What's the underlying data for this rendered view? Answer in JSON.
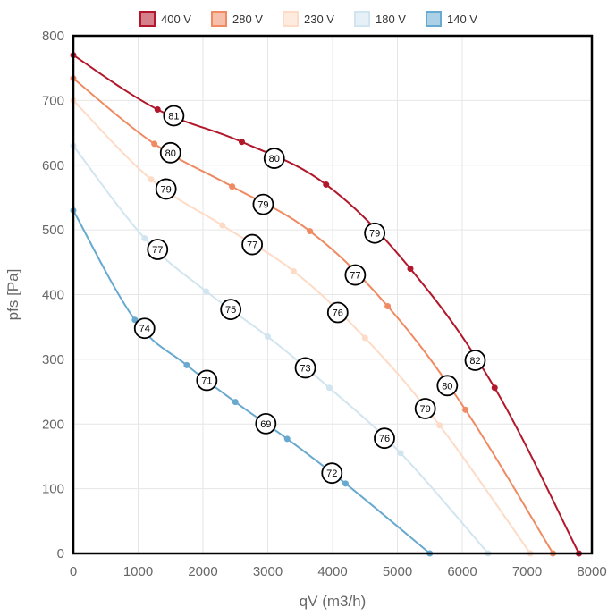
{
  "chart_data": {
    "type": "line",
    "xlabel": "qV (m3/h)",
    "ylabel": "pfs [Pa]",
    "xlim": [
      0,
      8000
    ],
    "ylim": [
      0,
      800
    ],
    "xticks": [
      "0",
      "1000",
      "2000",
      "3000",
      "4000",
      "5000",
      "6000",
      "7000",
      "8000"
    ],
    "yticks": [
      "0",
      "100",
      "200",
      "300",
      "400",
      "500",
      "600",
      "700",
      "800"
    ],
    "grid": true,
    "legend_position": "top",
    "series": [
      {
        "name": "400 V",
        "color": "#b2182b",
        "points": [
          [
            0,
            770
          ],
          [
            1300,
            686
          ],
          [
            2600,
            636
          ],
          [
            3900,
            570
          ],
          [
            5200,
            440
          ],
          [
            6500,
            256
          ],
          [
            7800,
            0
          ]
        ],
        "annotations": [
          [
            1550,
            81
          ],
          [
            3100,
            80
          ],
          [
            4650,
            79
          ],
          [
            6200,
            82
          ]
        ]
      },
      {
        "name": "280 V",
        "color": "#ef8a62",
        "points": [
          [
            0,
            734
          ],
          [
            1250,
            633
          ],
          [
            2450,
            567
          ],
          [
            3650,
            498
          ],
          [
            4850,
            382
          ],
          [
            6050,
            222
          ],
          [
            7400,
            0
          ]
        ],
        "annotations": [
          [
            1500,
            80
          ],
          [
            2930,
            79
          ],
          [
            4350,
            77
          ],
          [
            5770,
            80
          ]
        ]
      },
      {
        "name": "230 V",
        "color": "#fddbc7",
        "points": [
          [
            0,
            700
          ],
          [
            1200,
            578
          ],
          [
            2300,
            507
          ],
          [
            3400,
            436
          ],
          [
            4500,
            333
          ],
          [
            5650,
            198
          ],
          [
            7050,
            0
          ]
        ],
        "annotations": [
          [
            1430,
            79
          ],
          [
            2760,
            77
          ],
          [
            4080,
            76
          ],
          [
            5430,
            79
          ]
        ]
      },
      {
        "name": "180 V",
        "color": "#d1e5f0",
        "points": [
          [
            0,
            630
          ],
          [
            1100,
            487
          ],
          [
            2050,
            405
          ],
          [
            3000,
            335
          ],
          [
            3950,
            256
          ],
          [
            5050,
            155
          ],
          [
            6400,
            0
          ]
        ],
        "annotations": [
          [
            1300,
            77
          ],
          [
            2430,
            75
          ],
          [
            3580,
            73
          ],
          [
            4800,
            76
          ]
        ]
      },
      {
        "name": "140 V",
        "color": "#67a9cf",
        "points": [
          [
            0,
            530
          ],
          [
            950,
            361
          ],
          [
            1750,
            291
          ],
          [
            2500,
            234
          ],
          [
            3300,
            177
          ],
          [
            4200,
            108
          ],
          [
            5500,
            0
          ]
        ],
        "annotations": [
          [
            1100,
            74
          ],
          [
            2060,
            71
          ],
          [
            2970,
            69
          ],
          [
            3990,
            72
          ]
        ]
      }
    ]
  }
}
